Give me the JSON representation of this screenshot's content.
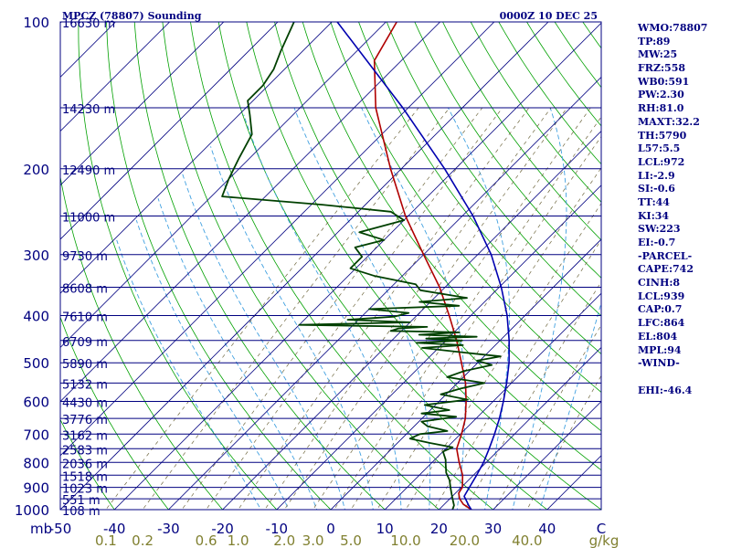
{
  "header": {
    "station": "MPCZ (78807) Sounding",
    "time": "0000Z 10 DEC 25"
  },
  "side_panel": [
    "WMO:78807",
    "TP:89",
    "MW:25",
    "FRZ:558",
    "WB0:591",
    "PW:2.30",
    "RH:81.0",
    "MAXT:32.2",
    "TH:5790",
    "L57:5.5",
    "LCL:972",
    "LI:-2.9",
    "SI:-0.6",
    "TT:44",
    "KI:34",
    "SW:223",
    "EI:-0.7",
    "-PARCEL-",
    "CAPE:742",
    "CINH:8",
    "LCL:939",
    "CAP:0.7",
    "LFC:864",
    "EL:804",
    "MPL:94",
    "-WIND-",
    "",
    "EHI:-46.4"
  ],
  "colors": {
    "frame": "#000080",
    "isobar": "#000080",
    "isotherm": "#000080",
    "dry_adiabat": "#00a000",
    "moist_adiabat": "#40a0e0",
    "mixing_ratio": "#706840",
    "temperature": "#b00000",
    "dewpoint": "#004000",
    "parcel": "#0000b0",
    "axis_text": "#000080",
    "mixing_text": "#808030"
  },
  "chart_data": {
    "type": "line",
    "chart_kind": "skew-T log-P sounding",
    "x_unit_label": "C",
    "p_unit_label": "mb",
    "mixing_ratio_unit_label": "g/kg",
    "xlim": [
      -50,
      50
    ],
    "plim": [
      1000,
      100
    ],
    "pressure_ticks": [
      100,
      200,
      300,
      400,
      500,
      600,
      700,
      800,
      900,
      1000
    ],
    "temperature_ticks": [
      "-50",
      "-40",
      "-30",
      "-20",
      "-10",
      "0",
      "10",
      "20",
      "30",
      "40",
      "C"
    ],
    "mixing_ratio_ticks": [
      "0.1",
      "0.2",
      "0.6",
      "1.0",
      "2.0",
      "3.0",
      "5.0",
      "10.0",
      "20.0",
      "40.0",
      "g/kg"
    ],
    "height_levels": [
      {
        "p": 100,
        "label": "16630 m"
      },
      {
        "p": 150,
        "label": "14230 m"
      },
      {
        "p": 200,
        "label": "12490 m"
      },
      {
        "p": 250,
        "label": "11000 m"
      },
      {
        "p": 300,
        "label": "9730 m"
      },
      {
        "p": 350,
        "label": "8608 m"
      },
      {
        "p": 400,
        "label": "7610 m"
      },
      {
        "p": 450,
        "label": "6709 m"
      },
      {
        "p": 500,
        "label": "5890 m"
      },
      {
        "p": 550,
        "label": "5132 m"
      },
      {
        "p": 600,
        "label": "4430 m"
      },
      {
        "p": 650,
        "label": "3776 m"
      },
      {
        "p": 700,
        "label": "3162 m"
      },
      {
        "p": 750,
        "label": "2583 m"
      },
      {
        "p": 800,
        "label": "2036 m"
      },
      {
        "p": 850,
        "label": "1518 m"
      },
      {
        "p": 900,
        "label": "1023 m"
      },
      {
        "p": 950,
        "label": "551 m"
      },
      {
        "p": 1000,
        "label": "108 m"
      }
    ],
    "series": [
      {
        "role": "temperature",
        "points": [
          [
            1000,
            26
          ],
          [
            975,
            23.5
          ],
          [
            950,
            21.8
          ],
          [
            925,
            20.6
          ],
          [
            900,
            20.2
          ],
          [
            850,
            18
          ],
          [
            800,
            15
          ],
          [
            750,
            12
          ],
          [
            700,
            10.2
          ],
          [
            650,
            8
          ],
          [
            600,
            5
          ],
          [
            550,
            1.5
          ],
          [
            500,
            -3
          ],
          [
            450,
            -8
          ],
          [
            400,
            -14
          ],
          [
            350,
            -21
          ],
          [
            300,
            -30
          ],
          [
            250,
            -40.5
          ],
          [
            200,
            -52
          ],
          [
            150,
            -66
          ],
          [
            120,
            -75
          ],
          [
            100,
            -78
          ]
        ]
      },
      {
        "role": "dewpoint",
        "points": [
          [
            1000,
            22.5
          ],
          [
            980,
            22
          ],
          [
            960,
            21
          ],
          [
            930,
            19.5
          ],
          [
            900,
            18
          ],
          [
            870,
            16.5
          ],
          [
            840,
            14.5
          ],
          [
            810,
            13
          ],
          [
            790,
            12
          ],
          [
            760,
            10
          ],
          [
            745,
            11
          ],
          [
            730,
            6
          ],
          [
            715,
            1.5
          ],
          [
            700,
            2.5
          ],
          [
            690,
            7
          ],
          [
            675,
            2.5
          ],
          [
            660,
            0.5
          ],
          [
            645,
            6
          ],
          [
            635,
            -1
          ],
          [
            625,
            3.5
          ],
          [
            610,
            -2
          ],
          [
            595,
            5
          ],
          [
            580,
            -1
          ],
          [
            565,
            1.5
          ],
          [
            550,
            5
          ],
          [
            535,
            -3
          ],
          [
            520,
            -1
          ],
          [
            505,
            3
          ],
          [
            495,
            -0.5
          ],
          [
            485,
            3
          ],
          [
            478,
            -3
          ],
          [
            472,
            -8
          ],
          [
            466,
            -13
          ],
          [
            460,
            -6
          ],
          [
            455,
            -15
          ],
          [
            450,
            -7
          ],
          [
            446,
            -14
          ],
          [
            442,
            -5
          ],
          [
            438,
            -16
          ],
          [
            433,
            -9
          ],
          [
            430,
            -22
          ],
          [
            425,
            -21
          ],
          [
            422,
            -16
          ],
          [
            418,
            -40
          ],
          [
            413,
            -20
          ],
          [
            408,
            -32
          ],
          [
            402,
            -24
          ],
          [
            395,
            -22
          ],
          [
            388,
            -30
          ],
          [
            382,
            -14
          ],
          [
            375,
            -22
          ],
          [
            368,
            -14
          ],
          [
            355,
            -24
          ],
          [
            345,
            -26
          ],
          [
            332,
            -35
          ],
          [
            320,
            -41
          ],
          [
            303,
            -41
          ],
          [
            290,
            -44
          ],
          [
            280,
            -40
          ],
          [
            270,
            -46
          ],
          [
            255,
            -40
          ],
          [
            245,
            -44
          ],
          [
            237,
            -58
          ],
          [
            228,
            -78
          ],
          [
            210,
            -80
          ],
          [
            190,
            -82
          ],
          [
            170,
            -84
          ],
          [
            155,
            -88
          ],
          [
            145,
            -91
          ],
          [
            135,
            -91
          ],
          [
            125,
            -92
          ],
          [
            115,
            -94
          ],
          [
            100,
            -97
          ]
        ]
      },
      {
        "role": "parcel",
        "points": [
          [
            1000,
            26
          ],
          [
            980,
            24.7
          ],
          [
            960,
            23.5
          ],
          [
            939,
            22.2
          ],
          [
            900,
            21.5
          ],
          [
            850,
            20.6
          ],
          [
            800,
            19.5
          ],
          [
            750,
            18
          ],
          [
            700,
            16.3
          ],
          [
            650,
            14.3
          ],
          [
            600,
            11.9
          ],
          [
            550,
            9.1
          ],
          [
            500,
            5.8
          ],
          [
            450,
            1.7
          ],
          [
            400,
            -3.3
          ],
          [
            350,
            -9.6
          ],
          [
            300,
            -17.5
          ],
          [
            250,
            -28
          ],
          [
            200,
            -42
          ],
          [
            150,
            -61
          ],
          [
            100,
            -89
          ]
        ]
      }
    ],
    "grid": true
  }
}
